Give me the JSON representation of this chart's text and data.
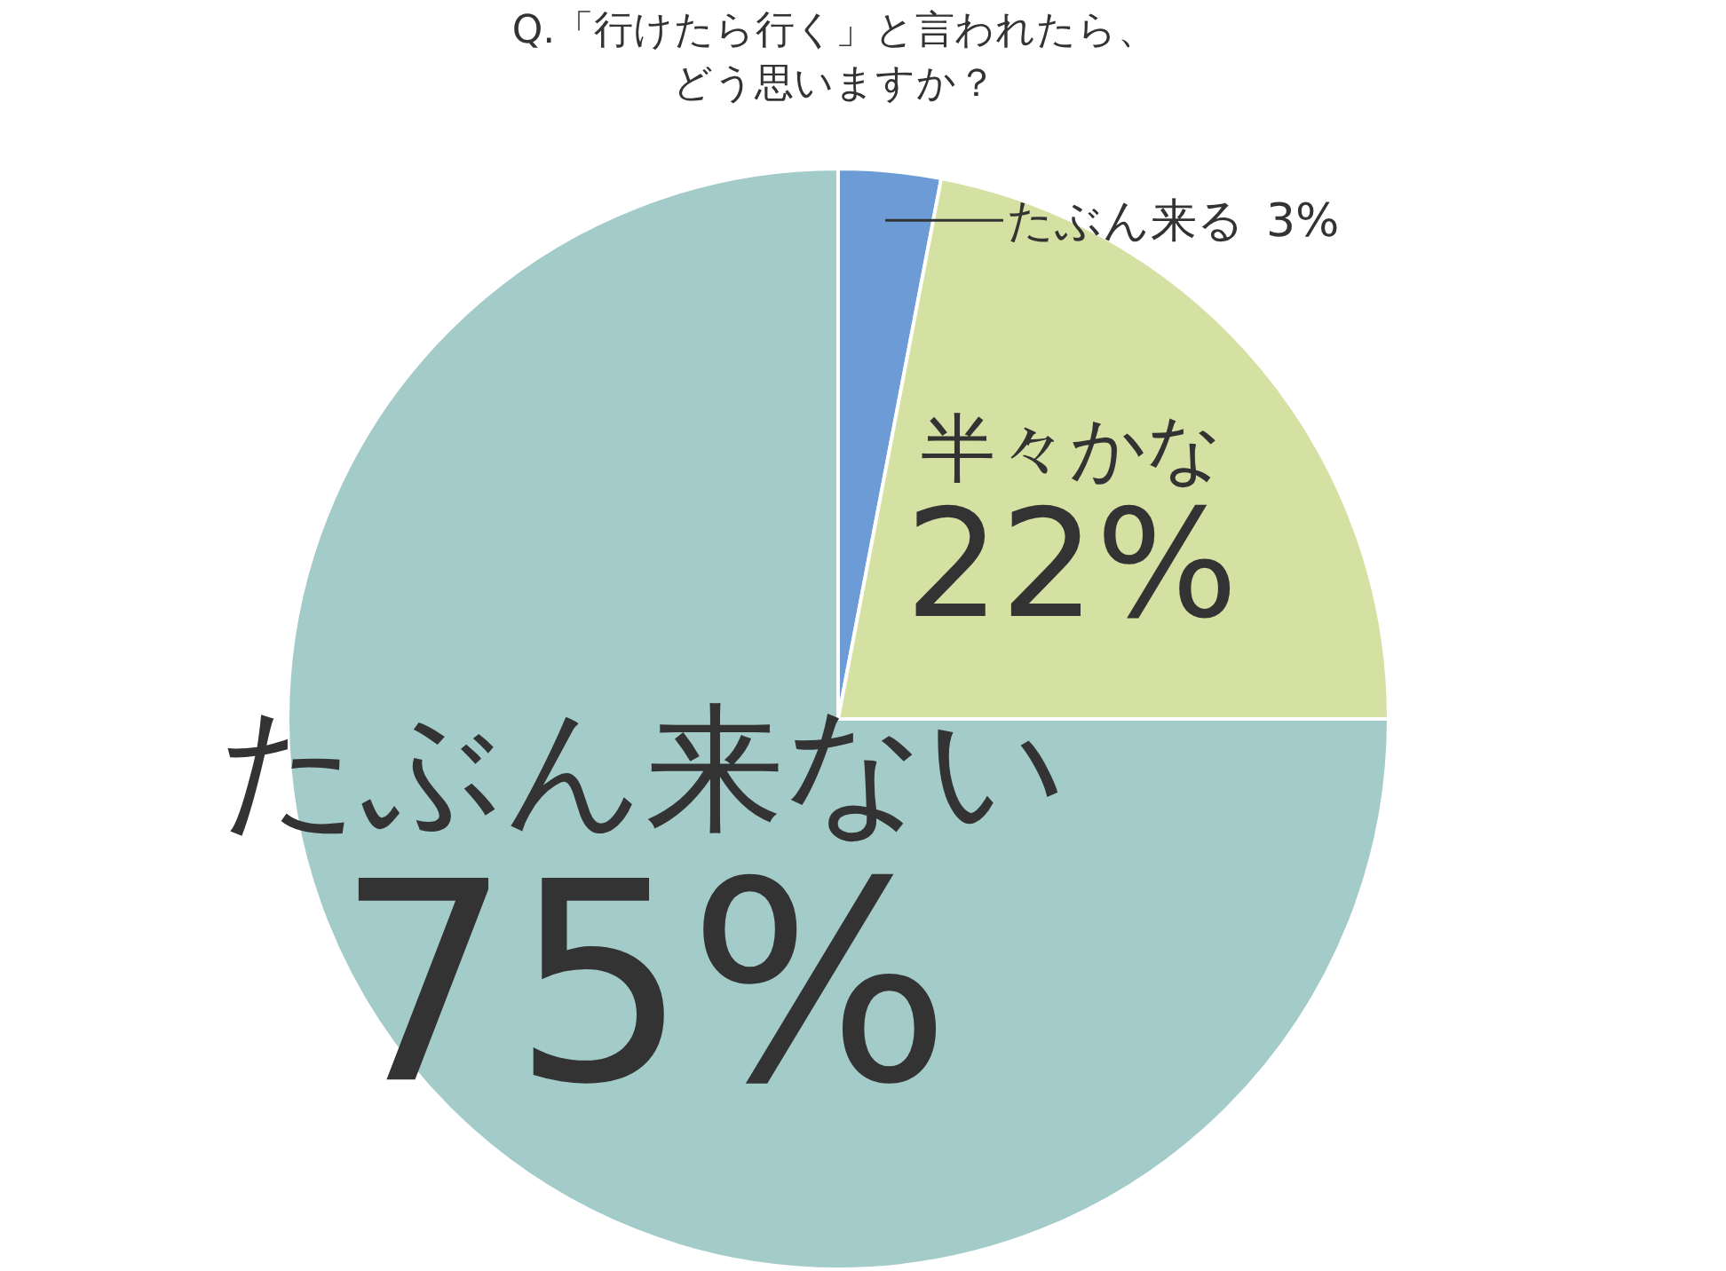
{
  "chart_data": {
    "type": "pie",
    "title": "Q.「行けたら行く」と言われたら、",
    "subtitle": "どう思いますか？",
    "categories": [
      "たぶん来る",
      "半々かな",
      "たぶん来ない"
    ],
    "values": [
      3,
      22,
      75
    ],
    "value_labels": [
      "3%",
      "22%",
      "75%"
    ],
    "colors": [
      "#6d9bd6",
      "#d5e1a3",
      "#a3cbc9"
    ],
    "legend": false
  }
}
